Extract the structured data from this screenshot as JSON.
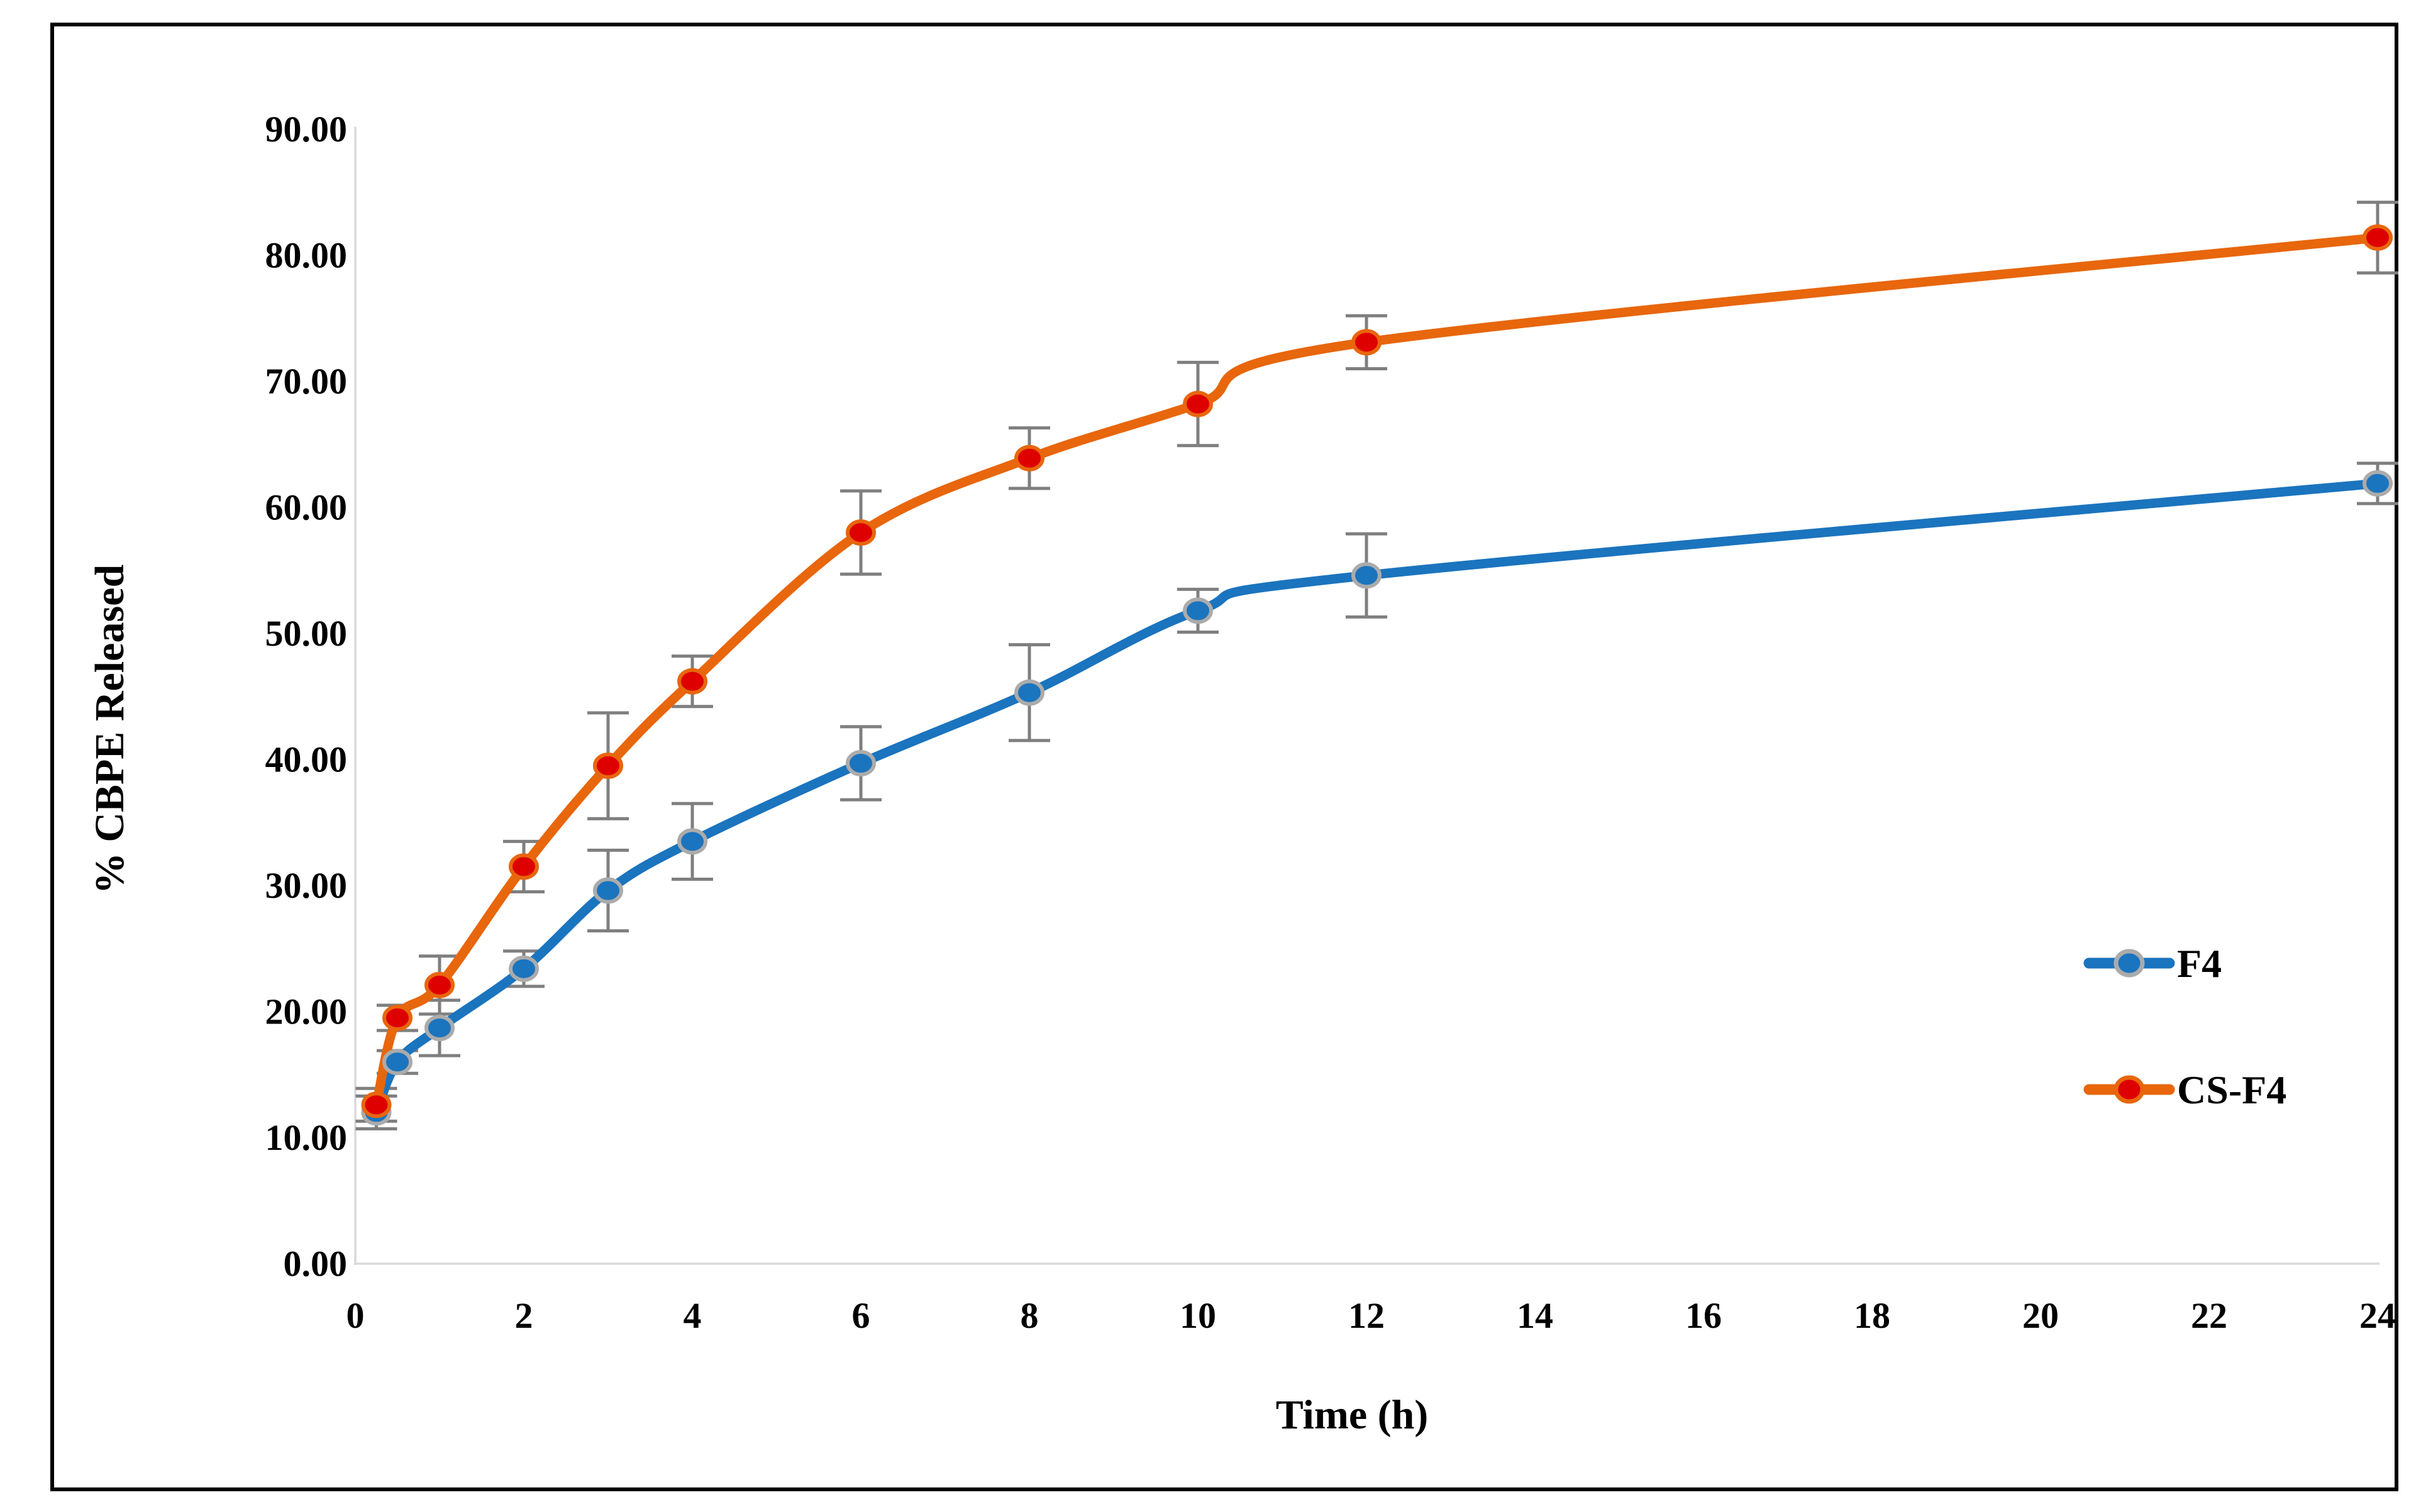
{
  "chart_data": {
    "type": "line",
    "title": "",
    "xlabel": "Time (h)",
    "ylabel": "% CBPE Released",
    "x": [
      0.25,
      0.5,
      1,
      2,
      3,
      4,
      6,
      8,
      10,
      12,
      24
    ],
    "series": [
      {
        "name": "F4",
        "values": [
          12.0,
          16.0,
          18.7,
          23.4,
          29.6,
          33.5,
          39.7,
          45.3,
          51.8,
          54.6,
          61.9
        ],
        "errors": [
          1.3,
          0.9,
          2.2,
          1.4,
          3.2,
          3.0,
          2.9,
          3.8,
          1.7,
          3.3,
          1.6
        ],
        "line_color": "#1B74BE",
        "marker_color": "#1B74BE",
        "marker_ring_color": "#ABABAB"
      },
      {
        "name": "CS-F4",
        "values": [
          12.6,
          19.5,
          22.1,
          31.5,
          39.5,
          46.2,
          58.0,
          63.9,
          68.2,
          73.1,
          81.4
        ],
        "errors": [
          1.3,
          1.0,
          2.3,
          2.0,
          4.2,
          2.0,
          3.3,
          2.4,
          3.3,
          2.1,
          2.8
        ],
        "line_color": "#E8660C",
        "marker_color": "#DE0000",
        "marker_ring_color": "#E8660C"
      }
    ],
    "xlim": [
      0,
      24
    ],
    "ylim": [
      0,
      90
    ],
    "x_ticks": [
      "0",
      "2",
      "4",
      "6",
      "8",
      "10",
      "12",
      "14",
      "16",
      "18",
      "20",
      "22",
      "24"
    ],
    "y_ticks": [
      "0.00",
      "10.00",
      "20.00",
      "30.00",
      "40.00",
      "50.00",
      "60.00",
      "70.00",
      "80.00",
      "90.00"
    ],
    "grid": false,
    "legend_position": "right",
    "error_bar_color": "#7F7F7F",
    "axis_line_color": "#D9D9D9"
  }
}
